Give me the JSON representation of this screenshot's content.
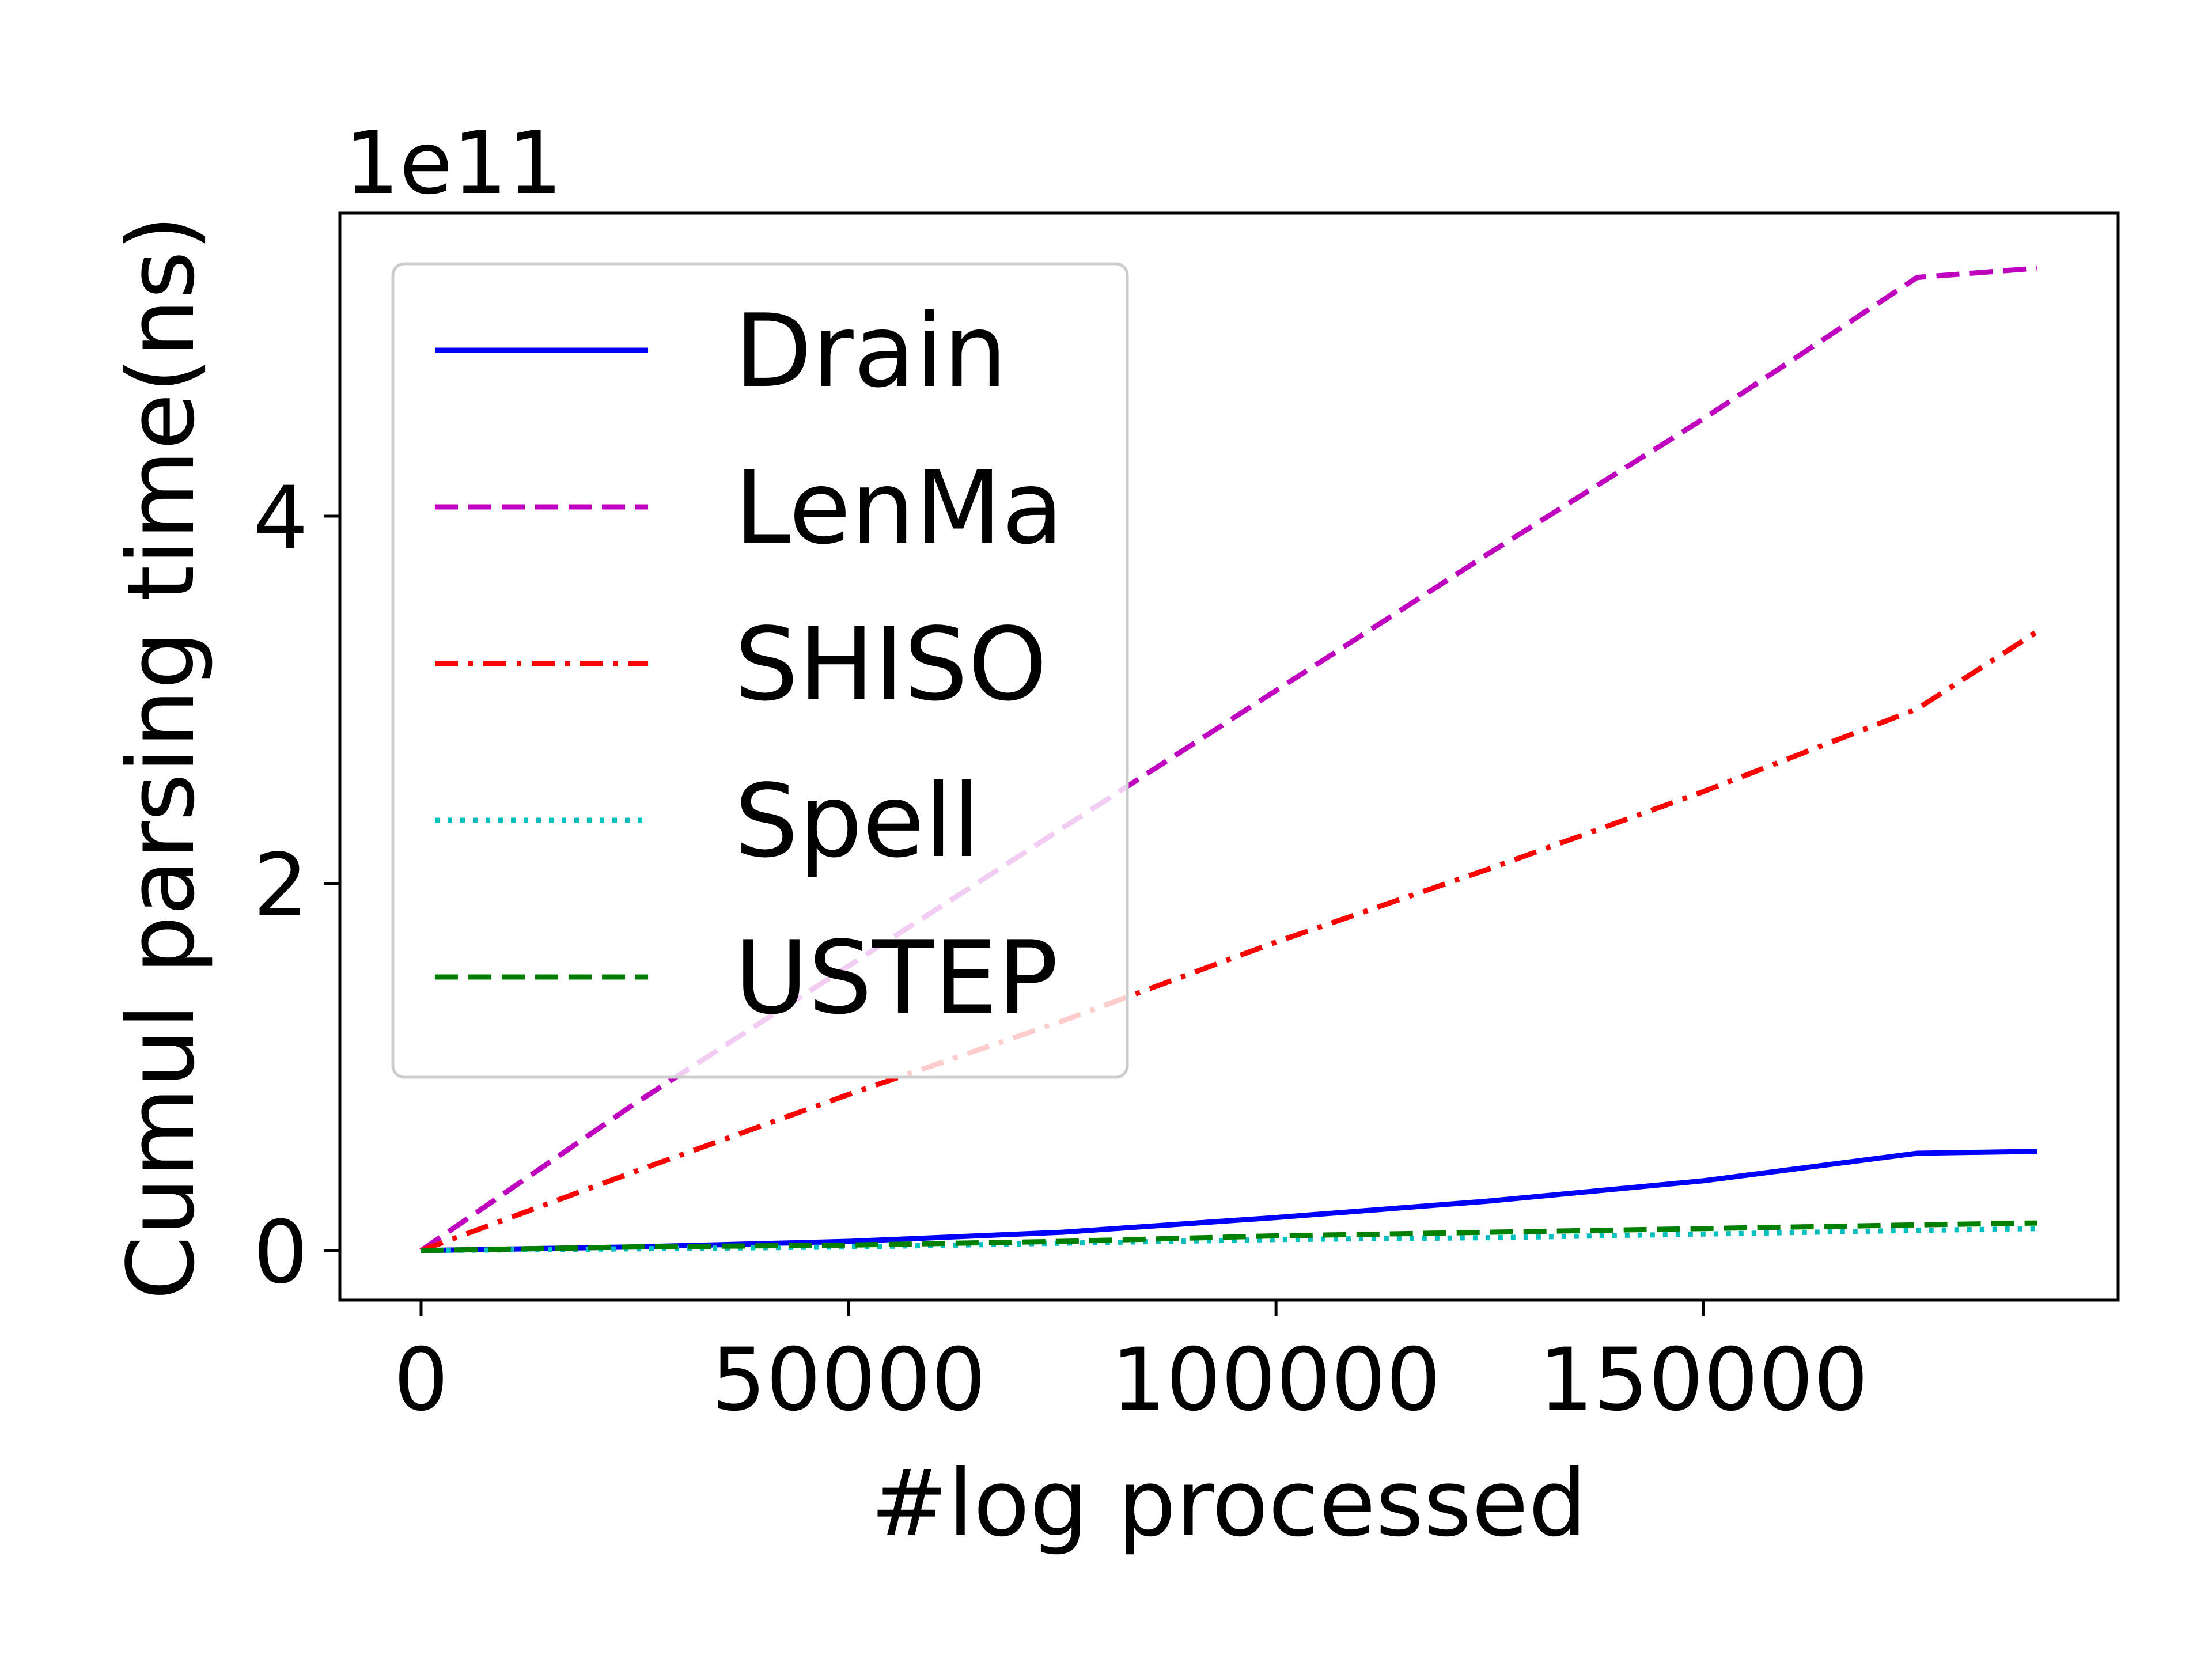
{
  "chart_data": {
    "type": "line",
    "title": "",
    "xlabel": "#log processed",
    "ylabel": "Cumul parsing time(ns)",
    "y_offset_label": "1e11",
    "xlim": [
      -9500,
      198500
    ],
    "ylim": [
      -0.27,
      5.65
    ],
    "xticks": [
      0,
      50000,
      100000,
      150000
    ],
    "xtick_labels": [
      "0",
      "50000",
      "100000",
      "150000"
    ],
    "yticks": [
      0,
      2,
      4
    ],
    "ytick_labels": [
      "0",
      "2",
      "4"
    ],
    "grid": false,
    "legend_position": "upper-left",
    "series": [
      {
        "name": "Drain",
        "color": "#0000ff",
        "style": "solid",
        "x": [
          0,
          25000,
          50000,
          75000,
          100000,
          125000,
          150000,
          175000,
          189000
        ],
        "y": [
          0,
          0.02,
          0.05,
          0.1,
          0.18,
          0.27,
          0.38,
          0.53,
          0.54
        ]
      },
      {
        "name": "LenMa",
        "color": "#bf00bf",
        "style": "dashed",
        "x": [
          0,
          25000,
          50000,
          75000,
          100000,
          125000,
          150000,
          175000,
          189000
        ],
        "y": [
          0,
          0.8,
          1.55,
          2.3,
          3.05,
          3.8,
          4.53,
          5.3,
          5.35
        ]
      },
      {
        "name": "SHISO",
        "color": "#ff0000",
        "style": "dashdot",
        "x": [
          0,
          25000,
          50000,
          75000,
          100000,
          125000,
          150000,
          175000,
          189000
        ],
        "y": [
          0,
          0.43,
          0.85,
          1.25,
          1.68,
          2.08,
          2.5,
          2.95,
          3.37
        ]
      },
      {
        "name": "Spell",
        "color": "#00bfbf",
        "style": "dotted",
        "x": [
          0,
          25000,
          50000,
          75000,
          100000,
          125000,
          150000,
          175000,
          189000
        ],
        "y": [
          0,
          0.01,
          0.02,
          0.04,
          0.06,
          0.07,
          0.09,
          0.11,
          0.12
        ]
      },
      {
        "name": "USTEP",
        "color": "#008000",
        "style": "dashed",
        "x": [
          0,
          25000,
          50000,
          75000,
          100000,
          125000,
          150000,
          175000,
          189000
        ],
        "y": [
          0,
          0.02,
          0.03,
          0.05,
          0.08,
          0.1,
          0.12,
          0.14,
          0.15
        ]
      }
    ]
  }
}
